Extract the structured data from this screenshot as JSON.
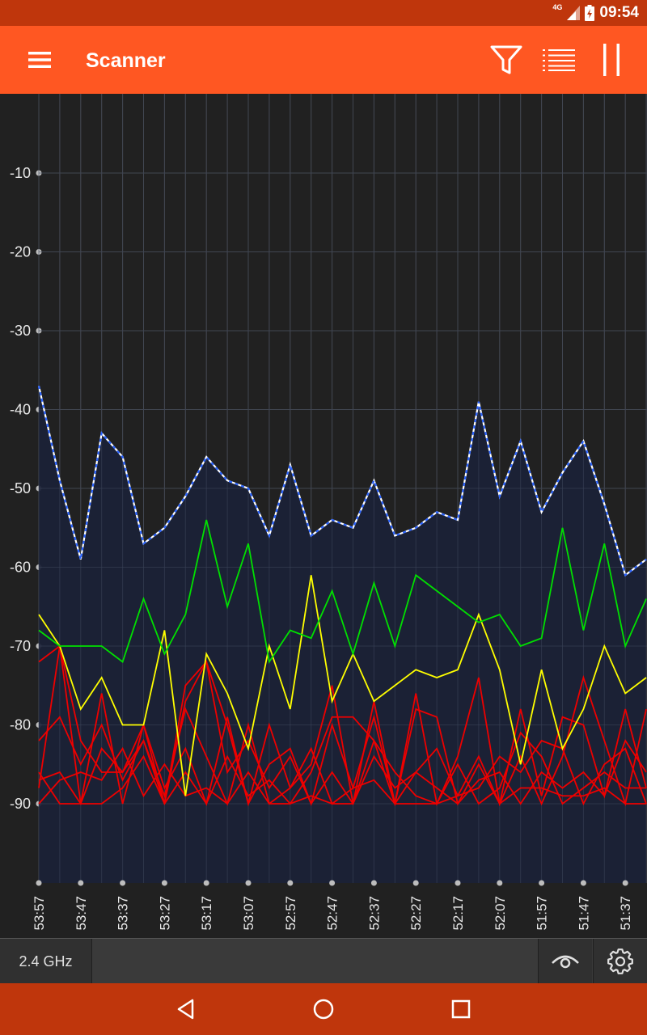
{
  "status_bar": {
    "network": "4G",
    "time": "09:54",
    "icons": [
      "signal-icon",
      "battery-charging-icon"
    ]
  },
  "app_bar": {
    "title": "Scanner",
    "icons": [
      "menu-icon",
      "filter-icon",
      "list-icon",
      "pause-icon"
    ]
  },
  "bottom_panel": {
    "band": "2.4 GHz",
    "icons": [
      "eye-icon",
      "gear-icon"
    ]
  },
  "nav_bar": {
    "icons": [
      "back-icon",
      "home-icon",
      "recents-icon"
    ]
  },
  "colors": {
    "app_bar": "#FF5722",
    "status_bar": "#BF360C",
    "chart_background": "#212121",
    "area_fill": "#1B2237",
    "strongest": "#FFFFFF",
    "strongest_dash": "#2962FF",
    "green": "#00E000",
    "yellow": "#FFFF00",
    "red": "#EE0000"
  },
  "chart_data": {
    "type": "line",
    "grid": true,
    "ylim": [
      -100,
      0
    ],
    "y_ticks": [
      "-10",
      "-20",
      "-30",
      "-40",
      "-50",
      "-60",
      "-70",
      "-80",
      "-90"
    ],
    "x_tick_labels": [
      "53:57",
      "53:47",
      "53:37",
      "53:27",
      "53:17",
      "53:07",
      "52:57",
      "52:47",
      "52:37",
      "52:27",
      "52:17",
      "52:07",
      "51:57",
      "51:47",
      "51:37"
    ],
    "x": [
      "53:57",
      "53:52",
      "53:47",
      "53:42",
      "53:37",
      "53:32",
      "53:27",
      "53:22",
      "53:17",
      "53:12",
      "53:07",
      "53:02",
      "52:57",
      "52:52",
      "52:47",
      "52:42",
      "52:37",
      "52:32",
      "52:27",
      "52:22",
      "52:17",
      "52:12",
      "52:07",
      "52:02",
      "51:57",
      "51:52",
      "51:47",
      "51:42",
      "51:37",
      "51:32"
    ],
    "series": [
      {
        "color": "#FFFFFF",
        "dashed": true,
        "fill": true,
        "values": [
          -37,
          -49,
          -59,
          -43,
          -46,
          -57,
          -55,
          -51,
          -46,
          -49,
          -50,
          -56,
          -47,
          -56,
          -54,
          -55,
          -49,
          -56,
          -55,
          -53,
          -54,
          -39,
          -51,
          -44,
          -53,
          -48,
          -44,
          -52,
          -61,
          -59
        ]
      },
      {
        "color": "#00E000",
        "values": [
          -68,
          -70,
          -70,
          -70,
          -72,
          -64,
          -71,
          -66,
          -54,
          -65,
          -57,
          -72,
          -68,
          -69,
          -63,
          -71,
          -62,
          -70,
          -61,
          -63,
          -65,
          -67,
          -66,
          -70,
          -69,
          -55,
          -68,
          -57,
          -70,
          -64
        ]
      },
      {
        "color": "#FFFF00",
        "values": [
          -66,
          -70,
          -78,
          -74,
          -80,
          -80,
          -68,
          -89,
          -71,
          -76,
          -83,
          -70,
          -78,
          -61,
          -77,
          -71,
          -77,
          -75,
          -73,
          -74,
          -73,
          -66,
          -73,
          -85,
          -73,
          -83,
          -78,
          -70,
          -76,
          -74
        ]
      },
      {
        "color": "#EE0000",
        "values": [
          -72,
          -70,
          -90,
          -76,
          -90,
          -80,
          -90,
          -77,
          -72,
          -80,
          -90,
          -80,
          -88,
          -85,
          -75,
          -90,
          -77,
          -90,
          -76,
          -90,
          -84,
          -74,
          -90,
          -84,
          -90,
          -84,
          -74,
          -82,
          -90,
          -78
        ]
      },
      {
        "color": "#EE0000",
        "values": [
          -82,
          -79,
          -85,
          -80,
          -87,
          -82,
          -89,
          -78,
          -84,
          -90,
          -80,
          -90,
          -90,
          -86,
          -79,
          -79,
          -82,
          -90,
          -78,
          -79,
          -90,
          -85,
          -90,
          -78,
          -89,
          -79,
          -80,
          -89,
          -78,
          -88
        ]
      },
      {
        "color": "#EE0000",
        "values": [
          -87,
          -86,
          -90,
          -83,
          -86,
          -80,
          -88,
          -83,
          -90,
          -79,
          -90,
          -85,
          -83,
          -90,
          -80,
          -88,
          -79,
          -90,
          -86,
          -83,
          -89,
          -88,
          -84,
          -86,
          -82,
          -83,
          -90,
          -85,
          -83,
          -90
        ]
      },
      {
        "color": "#EE0000",
        "values": [
          -88,
          -70,
          -82,
          -86,
          -86,
          -82,
          -90,
          -75,
          -72,
          -86,
          -82,
          -88,
          -84,
          -90,
          -86,
          -90,
          -84,
          -88,
          -86,
          -88,
          -90,
          -87,
          -86,
          -90,
          -86,
          -88,
          -86,
          -89,
          -82,
          -86
        ]
      },
      {
        "color": "#EE0000",
        "values": [
          -90,
          -87,
          -86,
          -87,
          -83,
          -89,
          -85,
          -89,
          -88,
          -90,
          -86,
          -90,
          -88,
          -83,
          -90,
          -88,
          -87,
          -90,
          -90,
          -90,
          -89,
          -84,
          -90,
          -88,
          -88,
          -89,
          -89,
          -88,
          -90,
          -90
        ]
      },
      {
        "color": "#EE0000",
        "values": [
          -86,
          -90,
          -90,
          -90,
          -88,
          -84,
          -90,
          -86,
          -90,
          -84,
          -89,
          -87,
          -90,
          -89,
          -90,
          -90,
          -82,
          -86,
          -89,
          -90,
          -85,
          -90,
          -88,
          -81,
          -84,
          -90,
          -88,
          -86,
          -88,
          -88
        ]
      }
    ]
  }
}
